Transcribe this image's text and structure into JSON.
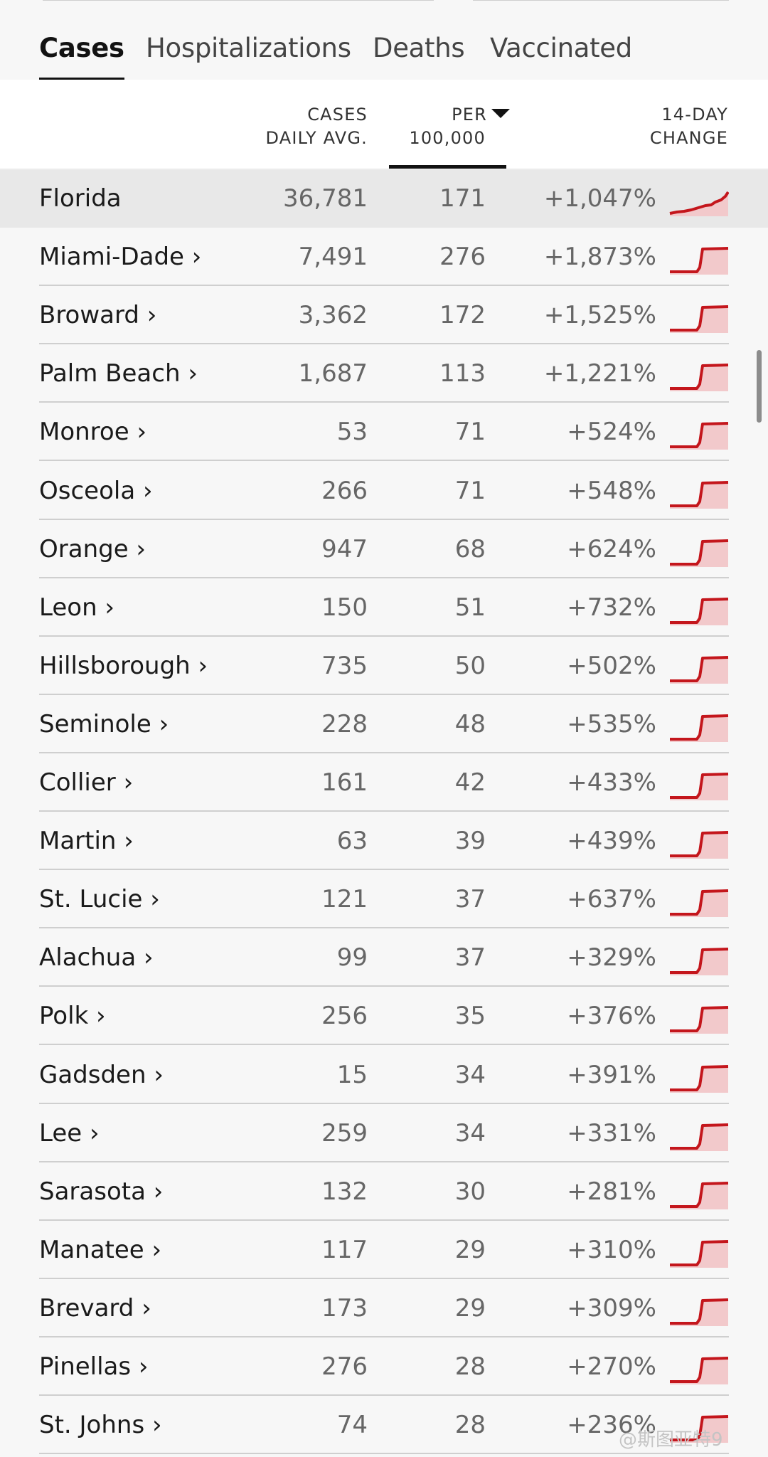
{
  "tabs": [
    "Cases",
    "Hospitalizations",
    "Deaths",
    "Vaccinated"
  ],
  "active_tab": "Cases",
  "columns": {
    "cases": [
      "CASES",
      "DAILY AVG."
    ],
    "per": [
      "PER",
      "100,000"
    ],
    "change": [
      "14-DAY",
      "CHANGE"
    ]
  },
  "sort_column": "per",
  "accent_color": "#c4161c",
  "spark_fill_color": "#f2c9cb",
  "rows": [
    {
      "name": "Florida",
      "cases": "36,781",
      "per": "171",
      "change": "+1,047%",
      "highlight": true
    },
    {
      "name": "Miami-Dade ›",
      "cases": "7,491",
      "per": "276",
      "change": "+1,873%"
    },
    {
      "name": "Broward ›",
      "cases": "3,362",
      "per": "172",
      "change": "+1,525%"
    },
    {
      "name": "Palm Beach ›",
      "cases": "1,687",
      "per": "113",
      "change": "+1,221%"
    },
    {
      "name": "Monroe ›",
      "cases": "53",
      "per": "71",
      "change": "+524%"
    },
    {
      "name": "Osceola ›",
      "cases": "266",
      "per": "71",
      "change": "+548%"
    },
    {
      "name": "Orange ›",
      "cases": "947",
      "per": "68",
      "change": "+624%"
    },
    {
      "name": "Leon ›",
      "cases": "150",
      "per": "51",
      "change": "+732%"
    },
    {
      "name": "Hillsborough ›",
      "cases": "735",
      "per": "50",
      "change": "+502%"
    },
    {
      "name": "Seminole ›",
      "cases": "228",
      "per": "48",
      "change": "+535%"
    },
    {
      "name": "Collier ›",
      "cases": "161",
      "per": "42",
      "change": "+433%"
    },
    {
      "name": "Martin ›",
      "cases": "63",
      "per": "39",
      "change": "+439%"
    },
    {
      "name": "St. Lucie ›",
      "cases": "121",
      "per": "37",
      "change": "+637%"
    },
    {
      "name": "Alachua ›",
      "cases": "99",
      "per": "37",
      "change": "+329%"
    },
    {
      "name": "Polk ›",
      "cases": "256",
      "per": "35",
      "change": "+376%"
    },
    {
      "name": "Gadsden ›",
      "cases": "15",
      "per": "34",
      "change": "+391%"
    },
    {
      "name": "Lee ›",
      "cases": "259",
      "per": "34",
      "change": "+331%"
    },
    {
      "name": "Sarasota ›",
      "cases": "132",
      "per": "30",
      "change": "+281%"
    },
    {
      "name": "Manatee ›",
      "cases": "117",
      "per": "29",
      "change": "+310%"
    },
    {
      "name": "Brevard ›",
      "cases": "173",
      "per": "29",
      "change": "+309%"
    },
    {
      "name": "Pinellas ›",
      "cases": "276",
      "per": "28",
      "change": "+270%"
    },
    {
      "name": "St. Johns ›",
      "cases": "74",
      "per": "28",
      "change": "+236%"
    }
  ],
  "watermark": "@斯图亚特9"
}
